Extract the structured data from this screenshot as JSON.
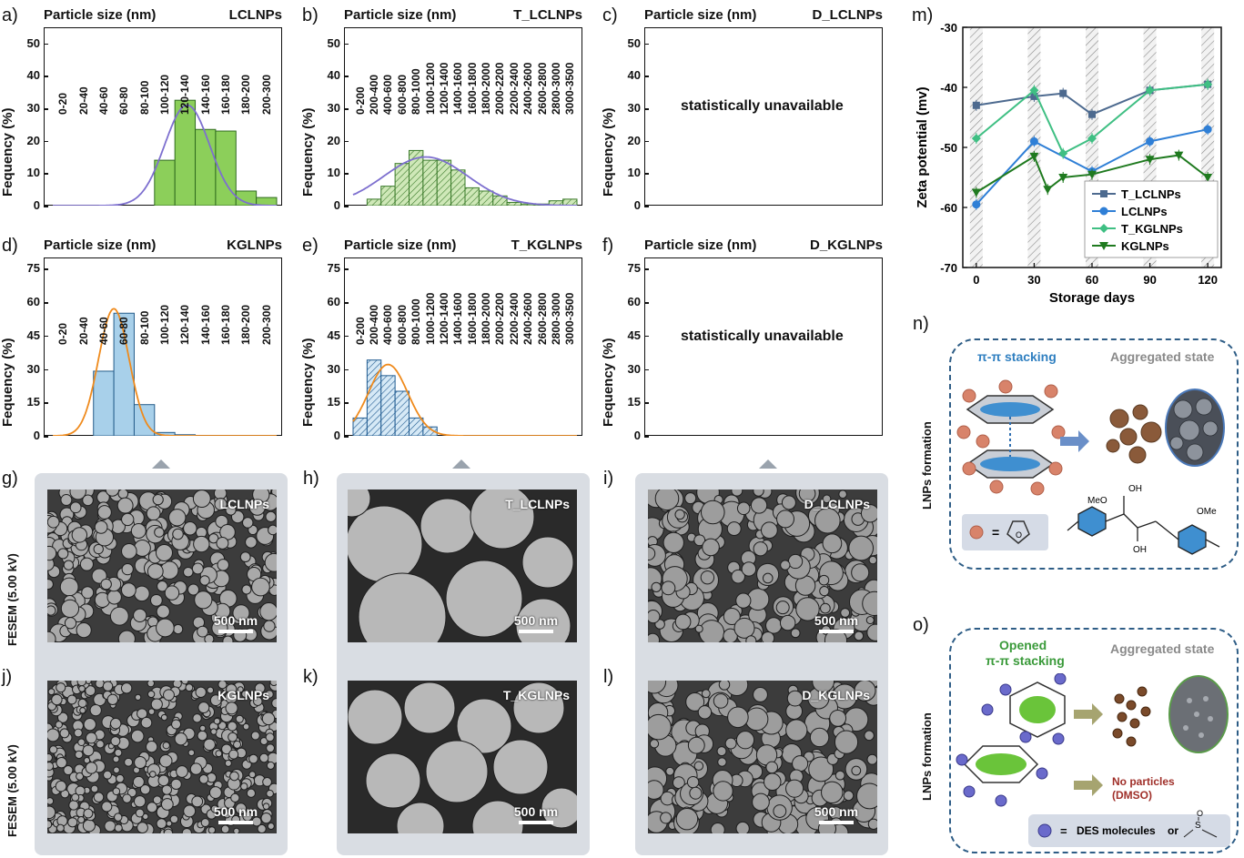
{
  "hist_panels": [
    {
      "letter": "a)",
      "header": "Particle size (nm)",
      "sample": "LCLNPs",
      "ylabel": "Fequency (%)",
      "yticks": [
        "0",
        "10",
        "20",
        "30",
        "40",
        "50"
      ],
      "ymax": 55,
      "categories": [
        "0-20",
        "20-40",
        "40-60",
        "60-80",
        "80-100",
        "100-120",
        "120-140",
        "140-160",
        "160-180",
        "180-200",
        "200-300"
      ],
      "values": [
        0,
        0,
        0,
        0,
        0,
        14,
        32.5,
        23.5,
        23,
        4.5,
        2.5
      ],
      "style": "solid-green",
      "fit": "purple",
      "fit_mu": 6.6,
      "fit_sigma": 1.1,
      "fit_peak": 31
    },
    {
      "letter": "b)",
      "header": "Particle size (nm)",
      "sample": "T_LCLNPs",
      "ylabel": "Fequency (%)",
      "yticks": [
        "0",
        "10",
        "20",
        "30",
        "40",
        "50"
      ],
      "ymax": 55,
      "categories": [
        "0-200",
        "200-400",
        "400-600",
        "600-800",
        "800-1000",
        "1000-1200",
        "1200-1400",
        "1400-1600",
        "1600-1800",
        "1800-2000",
        "2000-2200",
        "2200-2400",
        "2400-2600",
        "2600-2800",
        "2800-3000",
        "3000-3500"
      ],
      "values": [
        0,
        2,
        6,
        13,
        17,
        14,
        14,
        11,
        5.5,
        4.5,
        3,
        1,
        0.5,
        0.5,
        1.5,
        2
      ],
      "style": "hatch-green",
      "fit": "purple",
      "fit_mu": 5.2,
      "fit_sigma": 3.0,
      "fit_peak": 15
    },
    {
      "letter": "c)",
      "header": "Particle size (nm)",
      "sample": "D_LCLNPs",
      "ylabel": "Fequency (%)",
      "yticks": [
        "0",
        "10",
        "20",
        "30",
        "40",
        "50"
      ],
      "ymax": 55,
      "categories": [],
      "values": [],
      "center_text": "statistically unavailable"
    },
    {
      "letter": "d)",
      "header": "Particle size (nm)",
      "sample": "KGLNPs",
      "ylabel": "Fequency (%)",
      "yticks": [
        "0",
        "15",
        "30",
        "45",
        "60",
        "75"
      ],
      "ymax": 80,
      "categories": [
        "0-20",
        "20-40",
        "40-60",
        "60-80",
        "80-100",
        "100-120",
        "120-140",
        "140-160",
        "160-180",
        "180-200",
        "200-300"
      ],
      "values": [
        0,
        0,
        29,
        55,
        14,
        1.5,
        0.5,
        0,
        0,
        0,
        0
      ],
      "style": "solid-blue",
      "fit": "orange",
      "fit_mu": 3.0,
      "fit_sigma": 0.75,
      "fit_peak": 57
    },
    {
      "letter": "e)",
      "header": "Particle size (nm)",
      "sample": "T_KGLNPs",
      "ylabel": "Fequency (%)",
      "yticks": [
        "0",
        "15",
        "30",
        "45",
        "60",
        "75"
      ],
      "ymax": 80,
      "categories": [
        "0-200",
        "200-400",
        "400-600",
        "600-800",
        "800-1000",
        "1000-1200",
        "1200-1400",
        "1400-1600",
        "1600-1800",
        "1800-2000",
        "2000-2200",
        "2200-2400",
        "2400-2600",
        "2600-2800",
        "2800-3000",
        "3000-3500"
      ],
      "values": [
        8,
        34,
        27,
        20,
        8,
        4,
        0,
        0,
        0,
        0,
        0,
        0,
        0,
        0,
        0,
        0
      ],
      "style": "hatch-blue",
      "fit": "orange",
      "fit_mu": 2.5,
      "fit_sigma": 1.4,
      "fit_peak": 32
    },
    {
      "letter": "f)",
      "header": "Particle size (nm)",
      "sample": "D_KGLNPs",
      "ylabel": "Fequency (%)",
      "yticks": [
        "0",
        "15",
        "30",
        "45",
        "60",
        "75"
      ],
      "ymax": 80,
      "categories": [],
      "values": [],
      "center_text": "statistically unavailable"
    }
  ],
  "zeta_panel": {
    "letter": "m)",
    "chart_data": {
      "type": "line",
      "xlabel": "Storage days",
      "ylabel": "Zeta potential (mv)",
      "xticks": [
        "0",
        "30",
        "60",
        "90",
        "120"
      ],
      "yticks": [
        "-30",
        "-40",
        "-50",
        "-60",
        "-70"
      ],
      "xlim": [
        -7,
        127
      ],
      "ylim": [
        -70,
        -30
      ],
      "series": [
        {
          "name": "T_LCLNPs",
          "color": "#4d6a8f",
          "marker": "square",
          "x": [
            0,
            30,
            45,
            60,
            90,
            120
          ],
          "y": [
            -43,
            -41.5,
            -41,
            -44.5,
            -40.5,
            -39.5
          ]
        },
        {
          "name": "LCLNPs",
          "color": "#2f7fd6",
          "marker": "circle",
          "x": [
            0,
            30,
            60,
            90,
            120
          ],
          "y": [
            -59.5,
            -49,
            -54,
            -49,
            -47
          ]
        },
        {
          "name": "T_KGLNPs",
          "color": "#3fbf83",
          "marker": "diamond",
          "x": [
            0,
            30,
            45,
            60,
            90,
            120
          ],
          "y": [
            -48.5,
            -40.5,
            -51,
            -48.5,
            -40.5,
            -39.5
          ]
        },
        {
          "name": "KGLNPs",
          "color": "#1f7a1f",
          "marker": "triangle-down",
          "x": [
            0,
            30,
            37,
            45,
            60,
            90,
            105,
            120
          ],
          "y": [
            -57.5,
            -51.5,
            -57,
            -55,
            -54.5,
            -52,
            -51.3,
            -55
          ]
        }
      ],
      "hatched_days": [
        0,
        30,
        60,
        90,
        120
      ]
    }
  },
  "sem_rows": {
    "side_label": "FESEM (5.00 kV)",
    "images": [
      {
        "letter": "g)",
        "label": "LCLNPs",
        "scale": "500 nm",
        "texture": "fine"
      },
      {
        "letter": "h)",
        "label": "T_LCLNPs",
        "scale": "500 nm",
        "texture": "spheres-large"
      },
      {
        "letter": "i)",
        "label": "D_LCLNPs",
        "scale": "500 nm",
        "texture": "rough"
      },
      {
        "letter": "j)",
        "label": "KGLNPs",
        "scale": "500 nm",
        "texture": "fine-dense"
      },
      {
        "letter": "k)",
        "label": "T_KGLNPs",
        "scale": "500 nm",
        "texture": "spheres-medium"
      },
      {
        "letter": "l)",
        "label": "D_KGLNPs",
        "scale": "500 nm",
        "texture": "rough"
      }
    ]
  },
  "scheme_n": {
    "letter": "n)",
    "side_label": "LNPs formation",
    "title_left": "π-π stacking",
    "title_right": "Aggregated state",
    "legend_eq": "=",
    "mol_labels": [
      "MeO",
      "OH",
      "OMe",
      "OH"
    ]
  },
  "scheme_o": {
    "letter": "o)",
    "side_label": "LNPs formation",
    "title_left_1": "Opened",
    "title_left_2": "π-π stacking",
    "title_right": "Aggregated state",
    "no_particles_1": "No particles",
    "no_particles_2": "(DMSO)",
    "legend_eq": "=",
    "legend_text": "DES molecules",
    "legend_or": "or",
    "dmso_s": "S",
    "dmso_o": "O"
  }
}
